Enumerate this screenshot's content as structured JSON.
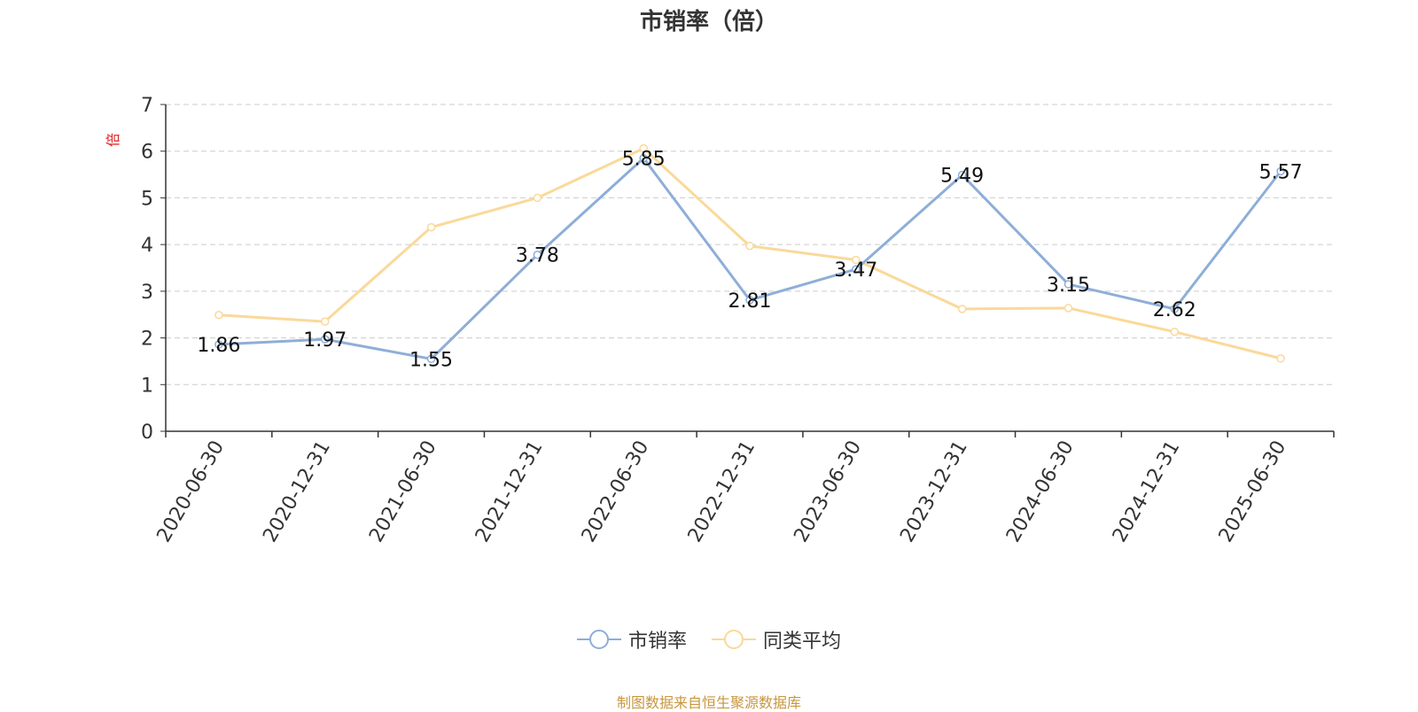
{
  "chart_data": {
    "type": "line",
    "title": "市销率（倍）",
    "ylabel": "倍",
    "categories": [
      "2020-06-30",
      "2020-12-31",
      "2021-06-30",
      "2021-12-31",
      "2022-06-30",
      "2022-12-31",
      "2023-06-30",
      "2023-12-31",
      "2024-06-30",
      "2024-12-31",
      "2025-06-30"
    ],
    "ylim": [
      0,
      7
    ],
    "yticks": [
      0,
      1,
      2,
      3,
      4,
      5,
      6,
      7
    ],
    "grid": true,
    "legend_position": "bottom",
    "series": [
      {
        "name": "市销率",
        "color": "#8eaed8",
        "values": [
          1.86,
          1.97,
          1.55,
          3.78,
          5.85,
          2.81,
          3.47,
          5.49,
          3.15,
          2.62,
          5.57
        ],
        "labels": [
          "1.86",
          "1.97",
          "1.55",
          "3.78",
          "5.85",
          "2.81",
          "3.47",
          "5.49",
          "3.15",
          "2.62",
          "5.57"
        ]
      },
      {
        "name": "同类平均",
        "color": "#fad99a",
        "values": [
          2.49,
          2.35,
          4.37,
          5.0,
          6.06,
          3.97,
          3.67,
          2.62,
          2.64,
          2.13,
          1.56
        ]
      }
    ]
  },
  "source_text": "制图数据来自恒生聚源数据库"
}
